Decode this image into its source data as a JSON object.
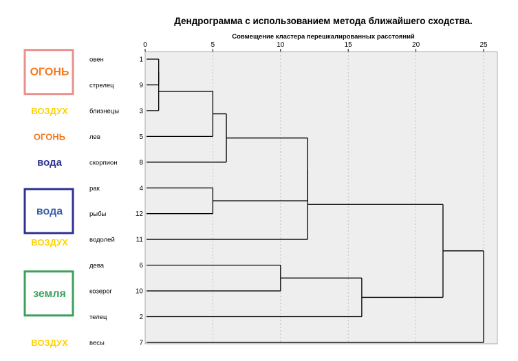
{
  "chart_data": {
    "type": "dendrogram",
    "title": "Дендрограмма с использованием метода ближайшего сходства.",
    "xlabel": "Совмещение кластера перешкалированных расстояний",
    "xlim": [
      0,
      25
    ],
    "ticks": [
      "0",
      "5",
      "10",
      "15",
      "20",
      "25"
    ],
    "leaves": [
      {
        "label": "овен",
        "id": "1"
      },
      {
        "label": "стрелец",
        "id": "9"
      },
      {
        "label": "близнецы",
        "id": "3"
      },
      {
        "label": "лев",
        "id": "5"
      },
      {
        "label": "скорпион",
        "id": "8"
      },
      {
        "label": "рак",
        "id": "4"
      },
      {
        "label": "рыбы",
        "id": "12"
      },
      {
        "label": "водолей",
        "id": "11"
      },
      {
        "label": "дева",
        "id": "6"
      },
      {
        "label": "козерог",
        "id": "10"
      },
      {
        "label": "телец",
        "id": "2"
      },
      {
        "label": "весы",
        "id": "7"
      }
    ],
    "merges": [
      {
        "a": "L0",
        "b": "L1",
        "height": 1
      },
      {
        "a": "M0",
        "b": "L2",
        "height": 1
      },
      {
        "a": "M1",
        "b": "L3",
        "height": 5
      },
      {
        "a": "M2",
        "b": "L4",
        "height": 6
      },
      {
        "a": "L5",
        "b": "L6",
        "height": 5
      },
      {
        "a": "M3",
        "b": "M4",
        "height": 12
      },
      {
        "a": "M5",
        "b": "L7",
        "height": 12
      },
      {
        "a": "L8",
        "b": "L9",
        "height": 10
      },
      {
        "a": "M7",
        "b": "L10",
        "height": 16
      },
      {
        "a": "M6",
        "b": "M8",
        "height": 22
      },
      {
        "a": "M9",
        "b": "L11",
        "height": 25
      }
    ]
  },
  "elements": [
    {
      "text": "ОГОНЬ",
      "color": "#f47920",
      "row": 0.5,
      "boxed": true,
      "box_color": "#e8918c",
      "size": "big"
    },
    {
      "text": "ВОЗДУХ",
      "color": "#ffd200",
      "row": 2,
      "boxed": false,
      "size": "small"
    },
    {
      "text": "ОГОНЬ",
      "color": "#f47920",
      "row": 3,
      "boxed": false,
      "size": "small"
    },
    {
      "text": "вода",
      "color": "#2e3192",
      "row": 4,
      "boxed": false,
      "size": "mid"
    },
    {
      "text": "вода",
      "color": "#3b5fa8",
      "row": 5.9,
      "boxed": true,
      "box_color": "#2e3192",
      "size": "big"
    },
    {
      "text": "ВОЗДУХ",
      "color": "#ffd200",
      "row": 7.1,
      "boxed": false,
      "size": "small"
    },
    {
      "text": "земля",
      "color": "#3aa05a",
      "row": 9.1,
      "boxed": true,
      "box_color": "#3aa05a",
      "size": "big"
    },
    {
      "text": "ВОЗДУХ",
      "color": "#ffd200",
      "row": 11,
      "boxed": false,
      "size": "small"
    }
  ]
}
